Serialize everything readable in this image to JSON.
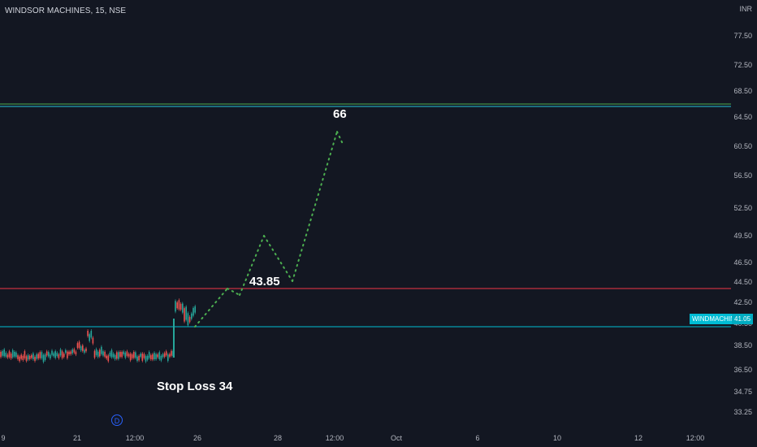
{
  "header": {
    "symbol_title": "WINDSOR MACHINES, 15, NSE"
  },
  "axis": {
    "currency": "INR",
    "price_labels": [
      "77.50",
      "72.50",
      "68.50",
      "64.50",
      "60.50",
      "56.50",
      "52.50",
      "49.50",
      "46.50",
      "44.50",
      "42.50",
      "40.50",
      "38.50",
      "36.50",
      "34.75",
      "33.25"
    ],
    "time_labels": [
      "9",
      "21",
      "12:00",
      "26",
      "28",
      "12:00",
      "Oct",
      "6",
      "10",
      "12",
      "12:00"
    ]
  },
  "annotations": {
    "target": "66",
    "entry": "43.85",
    "stop_loss": "Stop Loss 34"
  },
  "price_tag": {
    "symbol": "WINDMACHIN",
    "price": "41.05"
  },
  "dividend_icon": "D",
  "colors": {
    "background": "#131722",
    "target_line": "#4caf50",
    "entry_line": "#f23645",
    "current_line": "#00bcd4",
    "up_candle": "#26a69a",
    "down_candle": "#ef5350",
    "projection": "#4caf50"
  },
  "chart_data": {
    "type": "candlestick",
    "title": "WINDSOR MACHINES, 15, NSE",
    "y_scale": "log",
    "ylim": [
      32.5,
      80
    ],
    "horizontal_levels": [
      {
        "name": "target",
        "value": 66
      },
      {
        "name": "entry",
        "value": 43.85
      },
      {
        "name": "current",
        "value": 41.05
      }
    ],
    "projection_path": [
      {
        "x": "25",
        "y": 41
      },
      {
        "x": "27",
        "y": 44.3
      },
      {
        "x": "27.5",
        "y": 43.5
      },
      {
        "x": "28",
        "y": 49.5
      },
      {
        "x": "29",
        "y": 45
      },
      {
        "x": "30",
        "y": 62
      },
      {
        "x": "30.2",
        "y": 60.5
      }
    ]
  }
}
